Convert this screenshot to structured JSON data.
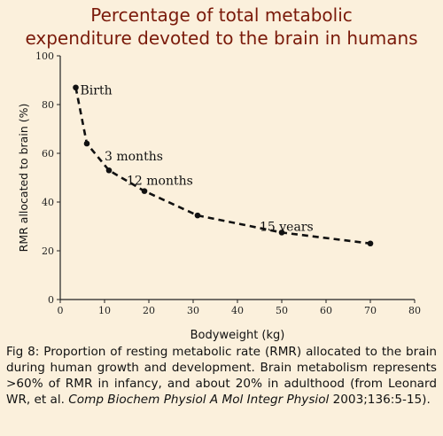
{
  "title": {
    "line1": "Percentage of total metabolic",
    "line2": "expenditure devoted to the brain in humans"
  },
  "chart_data": {
    "type": "line",
    "xlabel": "Bodyweight (kg)",
    "ylabel": "RMR allocated to brain (%)",
    "xlim": [
      0,
      80
    ],
    "ylim": [
      0,
      100
    ],
    "x_ticks": [
      "0",
      "10",
      "20",
      "30",
      "40",
      "50",
      "60",
      "70",
      "80"
    ],
    "y_ticks": [
      "0",
      "20",
      "40",
      "60",
      "80",
      "100"
    ],
    "series": [
      {
        "x": [
          3.5,
          6,
          11,
          19,
          31,
          50,
          70
        ],
        "values": [
          87,
          64,
          53,
          44.5,
          34.5,
          27.5,
          23
        ]
      }
    ],
    "annotations": [
      {
        "text": "Birth",
        "x": 4.5,
        "y": 86
      },
      {
        "text": "3 months",
        "x": 10,
        "y": 59
      },
      {
        "text": "12 months",
        "x": 15,
        "y": 49
      },
      {
        "text": "15 years",
        "x": 45,
        "y": 30
      }
    ],
    "grid": false,
    "line_style": "dashed",
    "color": "#111111"
  },
  "caption": {
    "text": "Fig 8: Proportion of resting metabolic rate (RMR) allocated to the brain during human growth and development. Brain metabolism represents >60% of RMR in infancy, and about 20% in adulthood (from Leonard WR, et al. ",
    "journal": "Comp Biochem Physiol A Mol Integr Physiol",
    "citation": " 2003;136:5-15)."
  }
}
